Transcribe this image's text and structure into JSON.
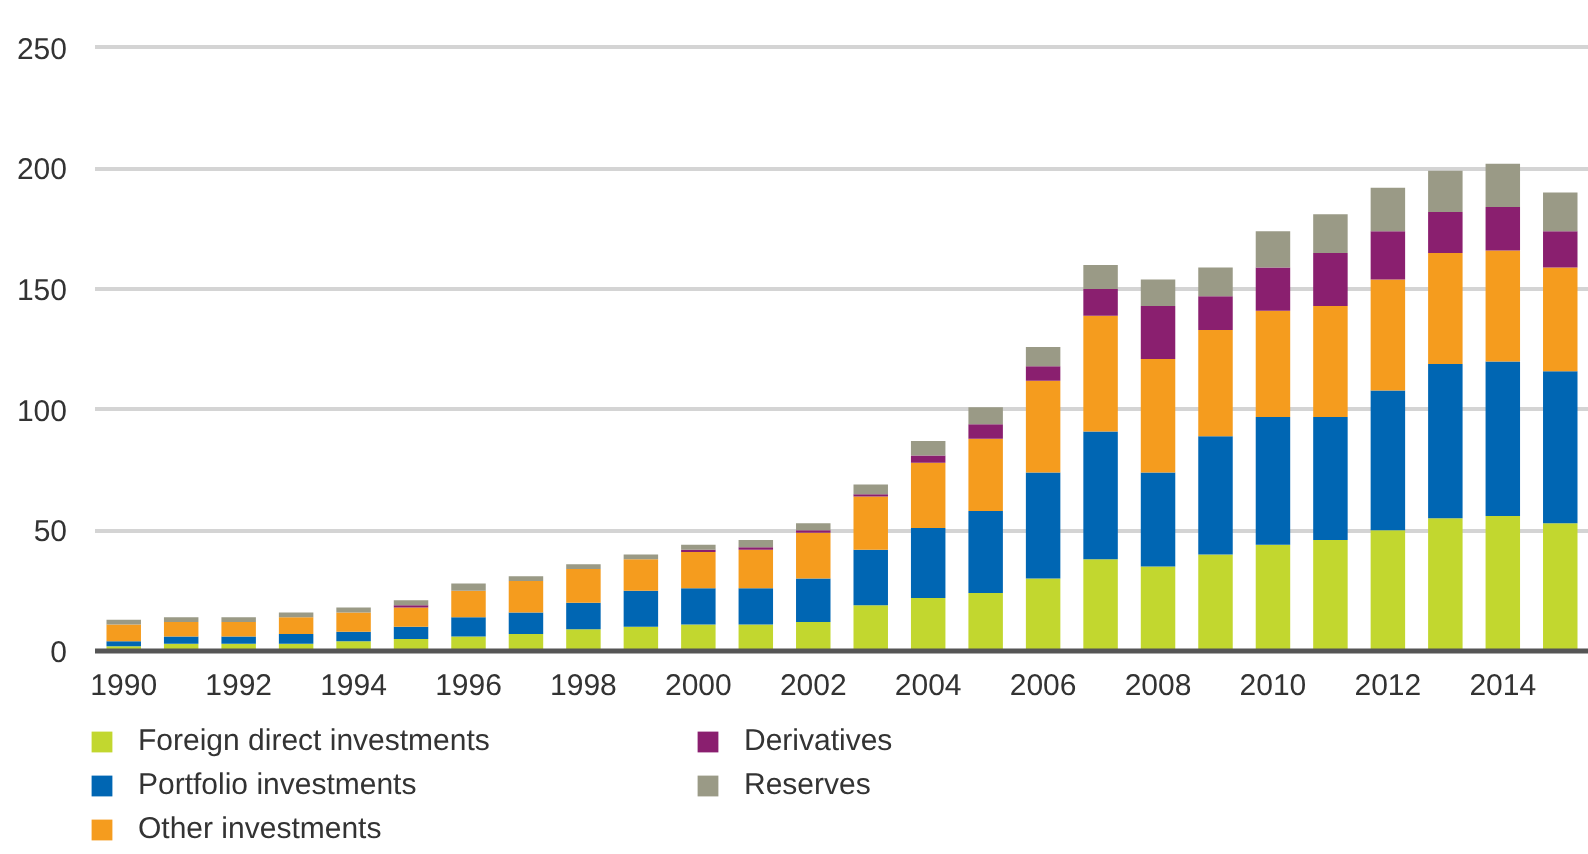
{
  "chart_data": {
    "type": "bar",
    "stacked": true,
    "x": [
      1990,
      1991,
      1992,
      1993,
      1994,
      1995,
      1996,
      1997,
      1998,
      1999,
      2000,
      2001,
      2002,
      2003,
      2004,
      2005,
      2006,
      2007,
      2008,
      2009,
      2010,
      2011,
      2012,
      2013,
      2014,
      2015
    ],
    "xlim": [
      1989.5,
      2015.5
    ],
    "xticks": [
      1990,
      1992,
      1994,
      1996,
      1998,
      2000,
      2002,
      2004,
      2006,
      2008,
      2010,
      2012,
      2014
    ],
    "ylim": [
      0,
      252
    ],
    "yticks": [
      0,
      50,
      100,
      150,
      200,
      250
    ],
    "grid": "y",
    "legend": "bottom",
    "series": [
      {
        "name": "Foreign direct investments",
        "color": "#c2d72f",
        "values": [
          2,
          3,
          3,
          3,
          4,
          5,
          6,
          7,
          9,
          10,
          11,
          11,
          12,
          19,
          22,
          24,
          30,
          38,
          35,
          40,
          44,
          46,
          50,
          55,
          56,
          53
        ]
      },
      {
        "name": "Portfolio investments",
        "color": "#0066b3",
        "values": [
          2,
          3,
          3,
          4,
          4,
          5,
          8,
          9,
          11,
          15,
          15,
          15,
          18,
          23,
          29,
          34,
          44,
          53,
          39,
          49,
          53,
          51,
          58,
          64,
          64,
          63
        ]
      },
      {
        "name": "Other investments",
        "color": "#f59c1e",
        "values": [
          7,
          6,
          6,
          7,
          8,
          8,
          11,
          13,
          14,
          13,
          15,
          16,
          19,
          22,
          27,
          30,
          38,
          48,
          47,
          44,
          44,
          46,
          46,
          46,
          46,
          43
        ]
      },
      {
        "name": "Derivatives",
        "color": "#8a1f6f",
        "values": [
          0,
          0,
          0,
          0,
          0,
          1,
          0,
          0,
          0,
          0,
          1,
          1,
          1,
          1,
          3,
          6,
          6,
          11,
          22,
          14,
          18,
          22,
          20,
          17,
          18,
          15
        ]
      },
      {
        "name": "Reserves",
        "color": "#9a9a86",
        "values": [
          2,
          2,
          2,
          2,
          2,
          2,
          3,
          2,
          2,
          2,
          2,
          3,
          3,
          4,
          6,
          7,
          8,
          10,
          11,
          12,
          15,
          16,
          18,
          17,
          18,
          16
        ]
      }
    ]
  }
}
